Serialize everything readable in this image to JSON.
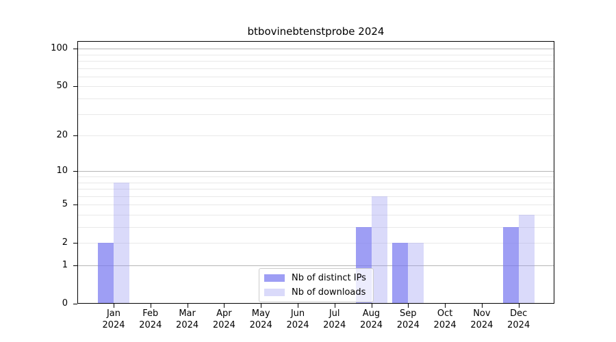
{
  "title": "btbovinebtenstprobe 2024",
  "colors": {
    "distinct_ips": "#a5a5f2",
    "downloads": "#dcdcf9",
    "distinct_ips_fill": "rgba(121,121,240,0.72)",
    "downloads_fill": "rgba(150,150,240,0.35)",
    "grid_major": "#b5b5b5",
    "grid_minor": "#e8e8e8",
    "spine": "#000000",
    "legend_border": "#cccccc"
  },
  "chart_data": {
    "type": "bar",
    "title": "btbovinebtenstprobe 2024",
    "categories": [
      "Jan",
      "Feb",
      "Mar",
      "Apr",
      "May",
      "Jun",
      "Jul",
      "Aug",
      "Sep",
      "Oct",
      "Nov",
      "Dec"
    ],
    "x_tick_line2": "2024",
    "series": [
      {
        "name": "Nb of distinct IPs",
        "color": "#a5a5f2",
        "values": [
          2,
          0,
          0,
          0,
          0,
          0,
          0,
          3,
          2,
          0,
          0,
          3
        ]
      },
      {
        "name": "Nb of downloads",
        "color": "#dcdcf9",
        "values": [
          8,
          0,
          0,
          0,
          0,
          0,
          0,
          6,
          2,
          0,
          0,
          4
        ]
      }
    ],
    "yscale": "log1p",
    "yticks": [
      0,
      1,
      2,
      5,
      10,
      20,
      50,
      100
    ],
    "ytick_major": [
      1,
      10,
      100
    ],
    "ytick_minor": [
      2,
      3,
      4,
      5,
      6,
      7,
      8,
      9,
      20,
      30,
      40,
      50,
      60,
      70,
      80,
      90
    ],
    "ylim": [
      0,
      116
    ],
    "grid": true,
    "legend_position": "lower-center",
    "xlabel": "",
    "ylabel": ""
  }
}
